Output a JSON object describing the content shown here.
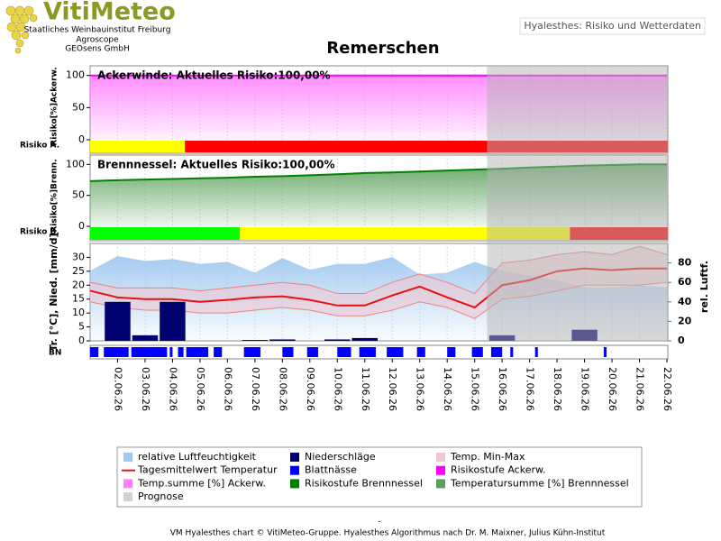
{
  "header": {
    "logo": "VitiMeteo",
    "institute": "Staatliches Weinbauinstitut Freiburg",
    "partner1": "Agroscope",
    "partner2": "GEOsens GmbH",
    "badge": "Hyalesthes: Risiko und Wetterdaten"
  },
  "title": "Remerschen",
  "xlim": [
    0,
    21
  ],
  "prognose": {
    "name": "Prognose",
    "start": 14.45,
    "end": 21,
    "color": "#b4b4b4"
  },
  "chart_data": [
    {
      "type": "area",
      "annotation": "Ackerwinde:  Aktuelles Risiko:100,00%",
      "ylabel": "Risiko[%]Ackerw.",
      "ylim": [
        0,
        115
      ],
      "yticks": [
        0,
        50,
        100
      ],
      "series": [
        {
          "name": "Temp.summe [%] Ackerw.",
          "color": "#ff80ff",
          "values": [
            100,
            100,
            100,
            100,
            100,
            100,
            100,
            100,
            100,
            100,
            100,
            100,
            100,
            100,
            100,
            100,
            100,
            100,
            100,
            100,
            100,
            100
          ]
        },
        {
          "name": "Risikostufe Ackerw.",
          "color": "#ff00ff",
          "values": [
            100,
            100,
            100,
            100,
            100,
            100,
            100,
            100,
            100,
            100,
            100,
            100,
            100,
            100,
            100,
            100,
            100,
            100,
            100,
            100,
            100,
            100
          ]
        }
      ],
      "strip": {
        "label": "Risiko A.",
        "segments": [
          {
            "start": 0,
            "end": 3.45,
            "color": "#ffff00"
          },
          {
            "start": 3.45,
            "end": 21.03,
            "color": "#ff0000"
          }
        ]
      }
    },
    {
      "type": "area",
      "annotation": "Brennnessel:  Aktuelles Risiko:100,00%",
      "ylabel": "Risiko[%]Brenn.",
      "ylim": [
        0,
        115
      ],
      "yticks": [
        0,
        50,
        100
      ],
      "series": [
        {
          "name": "Temperatursumme [%] Brennnessel",
          "color": "#5aa05a",
          "values": [
            73,
            74.5,
            75.5,
            76.5,
            77.5,
            78.5,
            80,
            81,
            82.5,
            84,
            86,
            87,
            88.5,
            90,
            91.5,
            93,
            95,
            96.5,
            98,
            99,
            100,
            100
          ]
        },
        {
          "name": "Risikostufe Brennnessel",
          "color": "#008000",
          "values": [
            73,
            74.5,
            75.5,
            76.5,
            77.5,
            78.5,
            80,
            81,
            82.5,
            84,
            86,
            87,
            88.5,
            90,
            91.5,
            93,
            95,
            96.5,
            98,
            99,
            100,
            100
          ]
        }
      ],
      "strip": {
        "label": "Risiko B.",
        "segments": [
          {
            "start": 0,
            "end": 5.45,
            "color": "#00ff00"
          },
          {
            "start": 5.45,
            "end": 17.47,
            "color": "#ffff00"
          },
          {
            "start": 17.47,
            "end": 21.03,
            "color": "#ff0000"
          }
        ]
      }
    },
    {
      "type": "weather",
      "ylabel": "Tr. [°C], Nied. [mm/d]",
      "y2label": "rel. Luftf.",
      "categories": [
        null,
        "02.06.26",
        "03.06.26",
        "04.06.26",
        "05.06.26",
        "06.06.26",
        "07.06.26",
        "08.06.26",
        "09.06.26",
        "10.06.26",
        "11.06.26",
        "12.06.26",
        "13.06.26",
        "14.06.26",
        "15.06.26",
        "16.06.26",
        "17.06.26",
        "18.06.26",
        "19.06.26",
        "20.06.26",
        "21.06.26",
        "22.06.26"
      ],
      "ylim": [
        0,
        35
      ],
      "yticks": [
        0,
        5,
        10,
        15,
        20,
        25,
        30
      ],
      "y2lim": [
        0,
        100
      ],
      "y2ticks": [
        0,
        20,
        40,
        60,
        80
      ],
      "humidity": {
        "name": "relative Luftfeuchtigkeit",
        "color": "#a0c8f0",
        "axis": "y2",
        "values": [
          72,
          87,
          82,
          84,
          79,
          81,
          70,
          85,
          73,
          79,
          79,
          86,
          68,
          70,
          81,
          72,
          67,
          62,
          55,
          55,
          57,
          55
        ]
      },
      "temp_range": {
        "name": "Temp. Min-Max",
        "color": "#f0c8d2",
        "min": [
          14,
          12,
          11,
          11,
          10,
          10,
          11,
          12,
          11,
          9,
          9,
          11,
          14,
          12,
          8,
          15,
          16,
          18,
          20,
          20,
          20,
          21
        ],
        "max": [
          21,
          19,
          19,
          19,
          18,
          19,
          20,
          21,
          20,
          17,
          17,
          21,
          24,
          21,
          17,
          28,
          29,
          31,
          32,
          31,
          34,
          31
        ]
      },
      "temp_mean": {
        "name": "Tagesmittelwert Temperatur",
        "color": "#e81010",
        "values": [
          18,
          15.6,
          15,
          15,
          14,
          14.7,
          15.6,
          16,
          14.7,
          12.7,
          12.7,
          16.3,
          19.5,
          15.6,
          12,
          20,
          21.8,
          25,
          26,
          25.4,
          26,
          26
        ]
      },
      "precipitation": {
        "name": "Niederschläge",
        "color": "#00006e",
        "values": [
          0,
          14,
          2,
          14,
          0,
          0,
          0.3,
          0.5,
          0,
          0.5,
          1,
          0,
          0,
          0,
          0,
          2,
          0,
          0,
          4,
          0,
          0,
          0
        ]
      },
      "leaf_wetness": {
        "name": "Blattnässe",
        "label": "BN",
        "color": "#0000ff",
        "intervals": [
          [
            0,
            0.3
          ],
          [
            0.5,
            1.4
          ],
          [
            1.5,
            2.8
          ],
          [
            2.9,
            3.0
          ],
          [
            3.2,
            3.4
          ],
          [
            3.5,
            4.3
          ],
          [
            4.5,
            4.8
          ],
          [
            5.6,
            6.2
          ],
          [
            7.0,
            7.4
          ],
          [
            7.9,
            8.3
          ],
          [
            9.0,
            9.5
          ],
          [
            9.8,
            10.4
          ],
          [
            10.8,
            11.4
          ],
          [
            11.9,
            12.2
          ],
          [
            13.0,
            13.3
          ],
          [
            13.9,
            14.3
          ],
          [
            14.6,
            15.0
          ],
          [
            15.3,
            15.4
          ],
          [
            16.2,
            16.3
          ],
          [
            18.7,
            18.8
          ]
        ]
      }
    }
  ],
  "footer": {
    "dash": "-",
    "credit": "VM Hyalesthes chart © VitiMeteo-Gruppe. Hyalesthes Algorithmus nach Dr. M. Maixner, Julius Kühn-Institut"
  }
}
